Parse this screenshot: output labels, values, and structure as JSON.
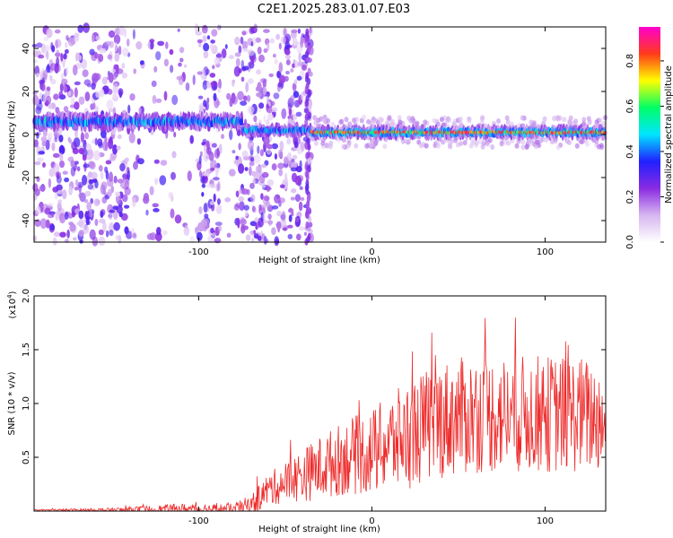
{
  "chart_data": [
    {
      "type": "heatmap",
      "title": "C2E1.2025.283.01.07.E03",
      "xlabel": "Height of straight line (km)",
      "ylabel": "Frequency (Hz)",
      "xlim": [
        -195,
        135
      ],
      "ylim": [
        -50,
        50
      ],
      "xticks": [
        -100,
        0,
        100
      ],
      "yticks": [
        -40,
        -20,
        0,
        20,
        40
      ],
      "colorbar": {
        "label": "Normalized spectral amplitude",
        "range": [
          0,
          0.95
        ],
        "ticks": [
          "0.0",
          "0.2",
          "0.4",
          "0.6",
          "0.8"
        ],
        "tick_values": [
          0,
          0.2,
          0.4,
          0.6,
          0.8
        ],
        "colors": [
          "#ffffff",
          "#d7b6f0",
          "#8a2be2",
          "#2020ff",
          "#00e5ff",
          "#00ff66",
          "#ffff00",
          "#ff3b1a",
          "#ff00d0"
        ]
      },
      "regions": [
        {
          "x_from": -195,
          "x_to": -75,
          "description_level": "noisy",
          "center_freq": 6,
          "band_halfwidth": 4
        },
        {
          "x_from": -75,
          "x_to": -35,
          "description_level": "noisy",
          "center_freq": 2,
          "band_halfwidth": 3
        },
        {
          "x_from": -35,
          "x_to": 135,
          "description_level": "strong",
          "center_freq": 1,
          "band_halfwidth": 3
        }
      ]
    },
    {
      "type": "line",
      "xlabel": "Height of straight line (km)",
      "ylabel": "SNR (10 * v/v)",
      "scale_label": "(x10",
      "scale_exp": "4",
      "xlim": [
        -195,
        135
      ],
      "ylim": [
        0,
        2.0
      ],
      "xticks": [
        -100,
        0,
        100
      ],
      "yticks": [
        0.5,
        1.0,
        1.5,
        2.0
      ],
      "ytick_labels": [
        "0.5",
        "1.0",
        "1.5",
        "2.0"
      ],
      "color": "#ee2a2a",
      "envelope": {
        "x": [
          -195,
          -150,
          -110,
          -80,
          -70,
          -60,
          -45,
          -30,
          -15,
          0,
          20,
          40,
          60,
          80,
          100,
          120,
          135
        ],
        "baseline": [
          0.01,
          0.01,
          0.02,
          0.02,
          0.05,
          0.2,
          0.3,
          0.4,
          0.5,
          0.55,
          0.7,
          0.85,
          0.9,
          0.9,
          0.9,
          0.9,
          0.85
        ],
        "spread": [
          0.005,
          0.02,
          0.05,
          0.05,
          0.1,
          0.15,
          0.22,
          0.3,
          0.35,
          0.4,
          0.5,
          0.55,
          0.55,
          0.55,
          0.55,
          0.55,
          0.5
        ]
      }
    }
  ]
}
